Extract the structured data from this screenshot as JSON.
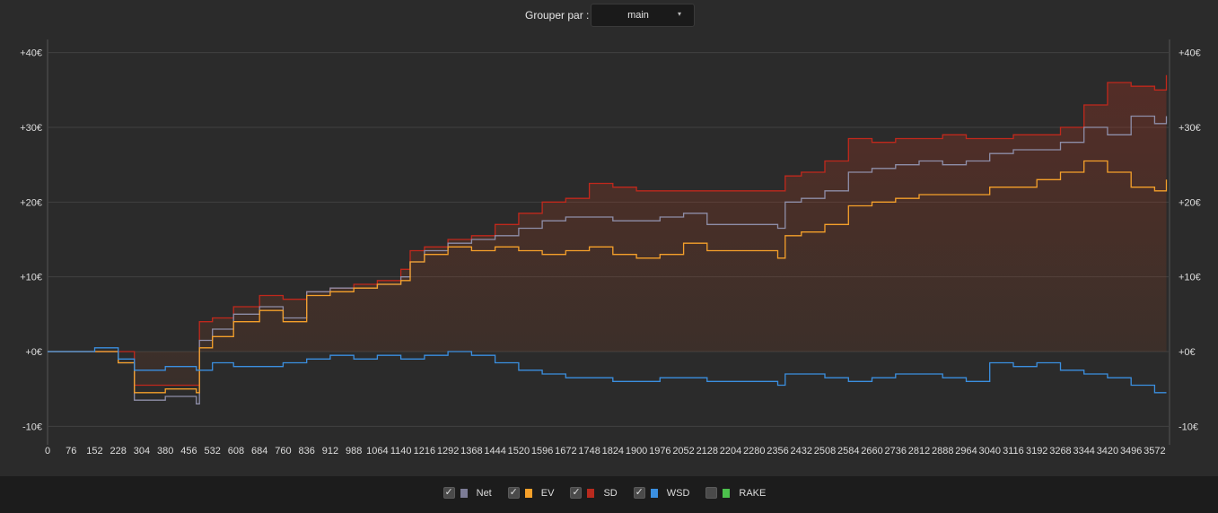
{
  "toolbar": {
    "group_label": "Grouper par :",
    "group_value": "main",
    "caret": "▾"
  },
  "chart_data": {
    "type": "line",
    "y_ticks": [
      "+40€",
      "+30€",
      "+20€",
      "+10€",
      "+0€",
      "-10€"
    ],
    "y_tick_values": [
      40,
      30,
      20,
      10,
      0,
      -10
    ],
    "ylim": [
      -12,
      42
    ],
    "xlim": [
      0,
      3620
    ],
    "x_ticks": [
      0,
      76,
      152,
      228,
      304,
      380,
      456,
      532,
      608,
      684,
      760,
      836,
      912,
      988,
      1064,
      1140,
      1216,
      1292,
      1368,
      1444,
      1520,
      1596,
      1672,
      1748,
      1824,
      1900,
      1976,
      2052,
      2128,
      2204,
      2280,
      2356,
      2432,
      2508,
      2584,
      2660,
      2736,
      2812,
      2888,
      2964,
      3040,
      3116,
      3192,
      3268,
      3344,
      3420,
      3496,
      3572
    ],
    "grid": true,
    "legend_position": "bottom",
    "series": [
      {
        "name": "Net",
        "color": "#8e8ea8",
        "x": [
          0,
          152,
          228,
          280,
          380,
          480,
          490,
          532,
          600,
          684,
          760,
          836,
          912,
          988,
          1064,
          1140,
          1170,
          1216,
          1292,
          1368,
          1444,
          1520,
          1596,
          1672,
          1748,
          1824,
          1900,
          1976,
          2052,
          2128,
          2204,
          2280,
          2356,
          2380,
          2432,
          2508,
          2584,
          2660,
          2736,
          2812,
          2888,
          2964,
          3040,
          3116,
          3192,
          3268,
          3344,
          3420,
          3496,
          3572,
          3610
        ],
        "y": [
          0,
          0,
          -1.5,
          -6.5,
          -6,
          -7,
          1.5,
          3,
          5,
          6,
          4.5,
          8,
          8.5,
          8.5,
          9,
          10,
          12,
          13.5,
          14.5,
          15,
          15.5,
          16.5,
          17.5,
          18,
          18,
          17.5,
          17.5,
          18,
          18.5,
          17,
          17,
          17,
          16.5,
          20,
          20.5,
          21.5,
          24,
          24.5,
          25,
          25.5,
          25,
          25.5,
          26.5,
          27,
          27,
          28,
          30,
          29,
          31.5,
          30.5,
          31.5
        ]
      },
      {
        "name": "EV",
        "color": "#f5a02a",
        "x": [
          0,
          152,
          228,
          280,
          380,
          480,
          490,
          532,
          600,
          684,
          760,
          836,
          912,
          988,
          1064,
          1140,
          1170,
          1216,
          1292,
          1368,
          1444,
          1520,
          1596,
          1672,
          1748,
          1824,
          1900,
          1976,
          2052,
          2128,
          2204,
          2280,
          2356,
          2380,
          2432,
          2508,
          2584,
          2660,
          2736,
          2812,
          2888,
          2964,
          3040,
          3116,
          3192,
          3268,
          3344,
          3420,
          3496,
          3572,
          3610
        ],
        "y": [
          0,
          0,
          -1.5,
          -5.5,
          -5,
          -5.5,
          0.5,
          2,
          4,
          5.5,
          4,
          7.5,
          8,
          8.5,
          9,
          9.5,
          12,
          13,
          14,
          13.5,
          14,
          13.5,
          13,
          13.5,
          14,
          13,
          12.5,
          13,
          14.5,
          13.5,
          13.5,
          13.5,
          12.5,
          15.5,
          16,
          17,
          19.5,
          20,
          20.5,
          21,
          21,
          21,
          22,
          22,
          23,
          24,
          25.5,
          24,
          22,
          21.5,
          23
        ]
      },
      {
        "name": "SD",
        "color": "#c0281c",
        "x": [
          0,
          152,
          228,
          280,
          380,
          480,
          490,
          532,
          600,
          684,
          760,
          836,
          912,
          988,
          1064,
          1140,
          1170,
          1216,
          1292,
          1368,
          1444,
          1520,
          1596,
          1672,
          1748,
          1824,
          1900,
          1976,
          2052,
          2128,
          2204,
          2280,
          2356,
          2380,
          2432,
          2508,
          2584,
          2660,
          2736,
          2812,
          2888,
          2964,
          3040,
          3116,
          3192,
          3268,
          3344,
          3420,
          3496,
          3572,
          3610
        ],
        "y": [
          0,
          0,
          0,
          -4.5,
          -4.5,
          -4.5,
          4,
          4.5,
          6,
          7.5,
          7,
          8,
          8.5,
          9,
          9.5,
          11,
          13.5,
          14,
          15,
          15.5,
          17,
          18.5,
          20,
          20.5,
          22.5,
          22,
          21.5,
          21.5,
          21.5,
          21.5,
          21.5,
          21.5,
          21.5,
          23.5,
          24,
          25.5,
          28.5,
          28,
          28.5,
          28.5,
          29,
          28.5,
          28.5,
          29,
          29,
          30,
          33,
          36,
          35.5,
          35,
          37
        ]
      },
      {
        "name": "WSD",
        "color": "#3b8fe0",
        "x": [
          0,
          152,
          228,
          280,
          380,
          480,
          532,
          600,
          684,
          760,
          836,
          912,
          988,
          1064,
          1140,
          1216,
          1292,
          1368,
          1444,
          1520,
          1596,
          1672,
          1748,
          1824,
          1900,
          1976,
          2052,
          2128,
          2204,
          2280,
          2356,
          2380,
          2432,
          2508,
          2584,
          2660,
          2736,
          2812,
          2888,
          2964,
          3040,
          3116,
          3192,
          3268,
          3344,
          3420,
          3496,
          3572,
          3610
        ],
        "y": [
          0,
          0.5,
          -1,
          -2.5,
          -2,
          -2.5,
          -1.5,
          -2,
          -2,
          -1.5,
          -1,
          -0.5,
          -1,
          -0.5,
          -1,
          -0.5,
          0,
          -0.5,
          -1.5,
          -2.5,
          -3,
          -3.5,
          -3.5,
          -4,
          -4,
          -3.5,
          -3.5,
          -4,
          -4,
          -4,
          -4.5,
          -3,
          -3,
          -3.5,
          -4,
          -3.5,
          -3,
          -3,
          -3.5,
          -4,
          -1.5,
          -2,
          -1.5,
          -2.5,
          -3,
          -3.5,
          -4.5,
          -5.5,
          -5.5
        ]
      }
    ]
  },
  "legend": [
    {
      "label": "Net",
      "color": "#7c7c96",
      "checked": true,
      "check": "✓"
    },
    {
      "label": "EV",
      "color": "#f5a02a",
      "checked": true,
      "check": "✓"
    },
    {
      "label": "SD",
      "color": "#b82a1e",
      "checked": true,
      "check": "✓"
    },
    {
      "label": "WSD",
      "color": "#3b8fe0",
      "checked": true,
      "check": "✓"
    },
    {
      "label": "RAKE",
      "color": "#4cc04c",
      "checked": false,
      "check": ""
    }
  ]
}
